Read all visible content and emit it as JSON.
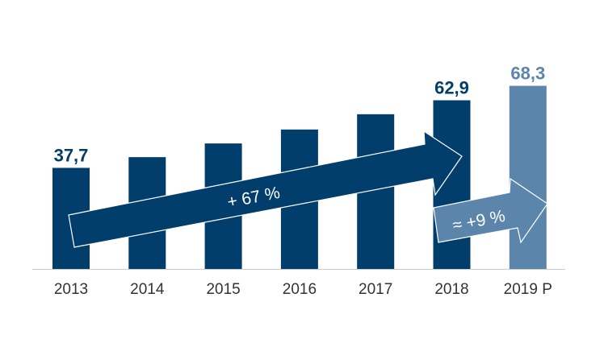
{
  "chart_data": {
    "type": "bar",
    "categories": [
      "2013",
      "2014",
      "2015",
      "2016",
      "2017",
      "2018",
      "2019 P"
    ],
    "values": [
      37.7,
      41.7,
      46.8,
      52.0,
      57.7,
      62.9,
      68.3
    ],
    "data_labels": {
      "0": "37,7",
      "5": "62,9",
      "6": "68,3"
    },
    "colors": {
      "actual": "#023e6b",
      "projected": "#5b85aa",
      "axis": "#cccccc"
    },
    "ylim": [
      0,
      72
    ],
    "grid": false,
    "annotations": [
      {
        "text": "+ 67 %",
        "from": "2013",
        "to": "2018"
      },
      {
        "text": "≈ +9 %",
        "from": "2018",
        "to": "2019 P"
      }
    ]
  }
}
